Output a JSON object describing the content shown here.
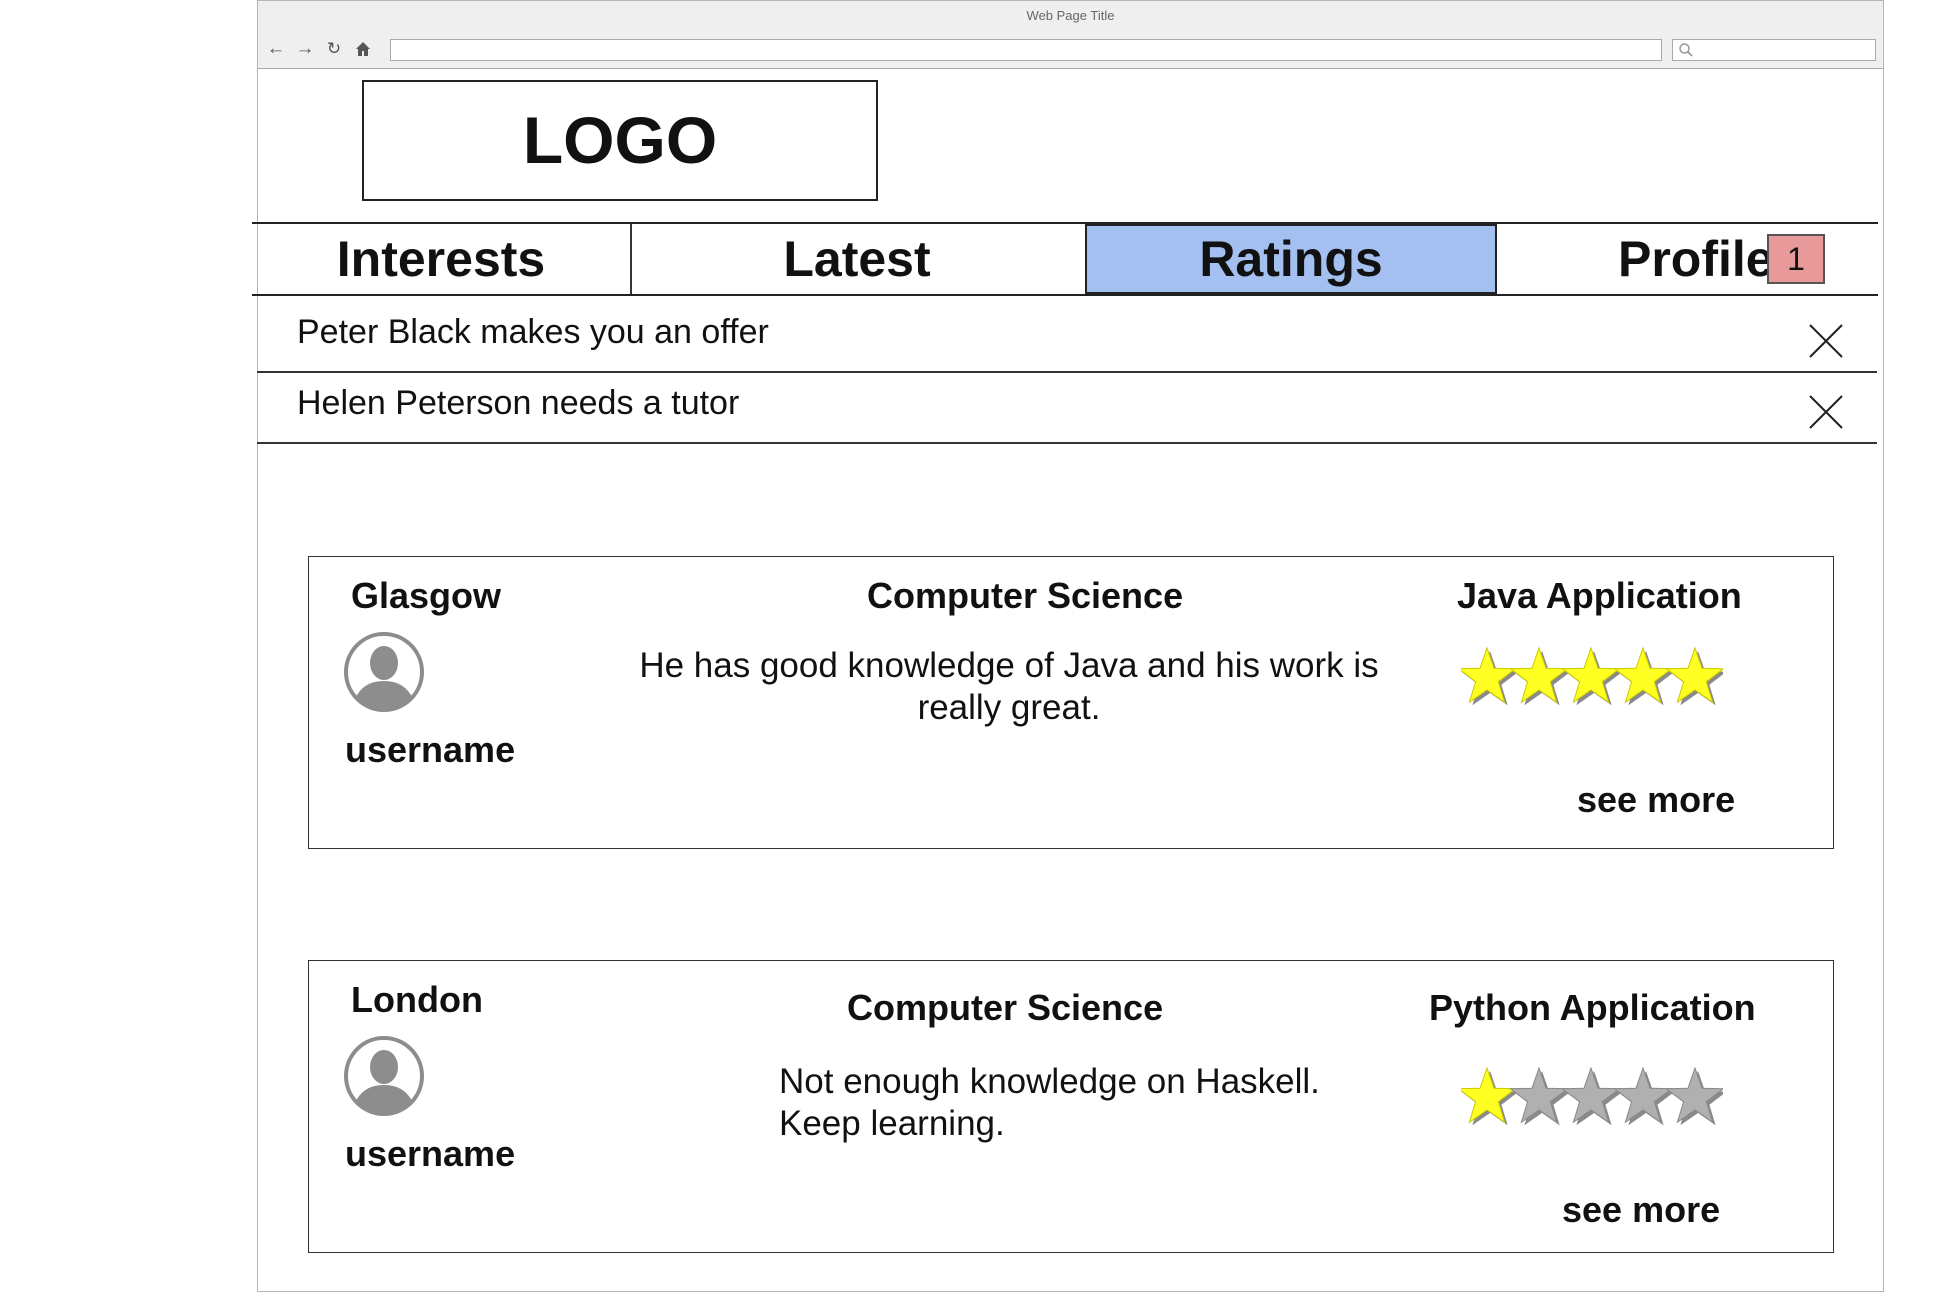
{
  "browser": {
    "title": "Web Page Title"
  },
  "logo": {
    "text": "LOGO"
  },
  "tabs": [
    {
      "label": "Interests",
      "active": false
    },
    {
      "label": "Latest",
      "active": false
    },
    {
      "label": "Ratings",
      "active": true
    },
    {
      "label": "Profile",
      "active": false
    }
  ],
  "profile_badge": "1",
  "notifications": [
    {
      "text": "Peter Black makes you an offer"
    },
    {
      "text": "Helen Peterson needs a tutor"
    }
  ],
  "ratings": [
    {
      "city": "Glasgow",
      "username": "username",
      "subject": "Computer Science",
      "comment": "He has good knowledge of Java and his work is really great.",
      "project": "Java Application",
      "stars": 5,
      "stars_max": 5,
      "see_more": "see more"
    },
    {
      "city": "London",
      "username": "username",
      "subject": "Computer Science",
      "comment": "Not enough knowledge on Haskell. Keep learning.",
      "project": "Python Application",
      "stars": 1,
      "stars_max": 5,
      "see_more": "see more"
    }
  ],
  "colors": {
    "active_tab": "#a3c0f0",
    "badge": "#e79a99",
    "star_filled": "#ffff22",
    "star_empty": "#b0b0b0"
  }
}
